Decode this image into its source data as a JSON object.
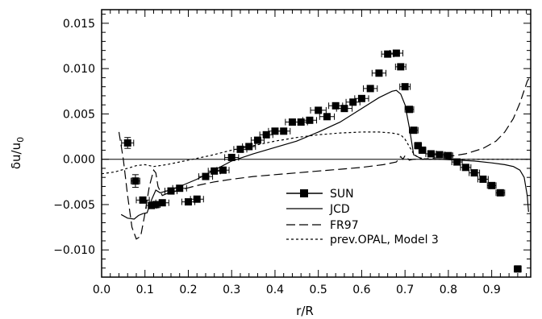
{
  "chart_data": {
    "type": "scatter",
    "xlabel": "r/R",
    "ylabel": "δu/u",
    "ylabel_subscript": "0",
    "xlim": [
      0.0,
      0.99
    ],
    "ylim": [
      -0.013,
      0.0165
    ],
    "x_ticks": [
      0.0,
      0.1,
      0.2,
      0.3,
      0.4,
      0.5,
      0.6,
      0.7,
      0.8,
      0.9
    ],
    "x_tick_labels": [
      "0.0",
      "0.1",
      "0.2",
      "0.3",
      "0.4",
      "0.5",
      "0.6",
      "0.7",
      "0.8",
      "0.9"
    ],
    "y_ticks": [
      -0.01,
      -0.005,
      0.0,
      0.005,
      0.01,
      0.015
    ],
    "y_tick_labels": [
      "−0.010",
      "−0.005",
      "0.000",
      "0.005",
      "0.010",
      "0.015"
    ],
    "reference_line_y": 0.0,
    "grid": false,
    "legend_position": "lower-center",
    "series": [
      {
        "name": "SUN",
        "style": "square-markers-with-x-errorbars",
        "color": "#000000",
        "points": [
          {
            "x": 0.06,
            "y": 0.0018,
            "xerr": 0.014,
            "yerr": 0.0006
          },
          {
            "x": 0.078,
            "y": -0.0024,
            "xerr": 0.01,
            "yerr": 0.0007
          },
          {
            "x": 0.095,
            "y": -0.0045,
            "xerr": 0.015
          },
          {
            "x": 0.115,
            "y": -0.0051,
            "xerr": 0.012
          },
          {
            "x": 0.125,
            "y": -0.005,
            "xerr": 0.01
          },
          {
            "x": 0.14,
            "y": -0.0048,
            "xerr": 0.015
          },
          {
            "x": 0.16,
            "y": -0.0035,
            "xerr": 0.014
          },
          {
            "x": 0.18,
            "y": -0.0032,
            "xerr": 0.016
          },
          {
            "x": 0.2,
            "y": -0.0047,
            "xerr": 0.015
          },
          {
            "x": 0.22,
            "y": -0.0044,
            "xerr": 0.015
          },
          {
            "x": 0.24,
            "y": -0.0019,
            "xerr": 0.016
          },
          {
            "x": 0.26,
            "y": -0.0013,
            "xerr": 0.014
          },
          {
            "x": 0.28,
            "y": -0.0012,
            "xerr": 0.014
          },
          {
            "x": 0.3,
            "y": 0.0002,
            "xerr": 0.016
          },
          {
            "x": 0.32,
            "y": 0.0011,
            "xerr": 0.015
          },
          {
            "x": 0.34,
            "y": 0.0014,
            "xerr": 0.015
          },
          {
            "x": 0.36,
            "y": 0.0021,
            "xerr": 0.015
          },
          {
            "x": 0.38,
            "y": 0.0027,
            "xerr": 0.015
          },
          {
            "x": 0.4,
            "y": 0.0031,
            "xerr": 0.015
          },
          {
            "x": 0.42,
            "y": 0.0031,
            "xerr": 0.015
          },
          {
            "x": 0.44,
            "y": 0.0041,
            "xerr": 0.016
          },
          {
            "x": 0.46,
            "y": 0.0041,
            "xerr": 0.015
          },
          {
            "x": 0.48,
            "y": 0.0043,
            "xerr": 0.016
          },
          {
            "x": 0.5,
            "y": 0.0054,
            "xerr": 0.018
          },
          {
            "x": 0.52,
            "y": 0.0047,
            "xerr": 0.017
          },
          {
            "x": 0.54,
            "y": 0.0059,
            "xerr": 0.016
          },
          {
            "x": 0.56,
            "y": 0.0056,
            "xerr": 0.018
          },
          {
            "x": 0.58,
            "y": 0.0063,
            "xerr": 0.016
          },
          {
            "x": 0.6,
            "y": 0.0067,
            "xerr": 0.016
          },
          {
            "x": 0.62,
            "y": 0.0078,
            "xerr": 0.016
          },
          {
            "x": 0.64,
            "y": 0.0095,
            "xerr": 0.016
          },
          {
            "x": 0.66,
            "y": 0.0116,
            "xerr": 0.014
          },
          {
            "x": 0.68,
            "y": 0.0117,
            "xerr": 0.015
          },
          {
            "x": 0.69,
            "y": 0.0102,
            "xerr": 0.012
          },
          {
            "x": 0.7,
            "y": 0.008,
            "xerr": 0.012
          },
          {
            "x": 0.71,
            "y": 0.0055,
            "xerr": 0.01
          },
          {
            "x": 0.72,
            "y": 0.0032,
            "xerr": 0.01
          },
          {
            "x": 0.73,
            "y": 0.0015,
            "xerr": 0.008
          },
          {
            "x": 0.74,
            "y": 0.001,
            "xerr": 0.008
          },
          {
            "x": 0.76,
            "y": 0.0006,
            "xerr": 0.012
          },
          {
            "x": 0.78,
            "y": 0.0005,
            "xerr": 0.012
          },
          {
            "x": 0.8,
            "y": 0.0004,
            "xerr": 0.01
          },
          {
            "x": 0.82,
            "y": -0.0003,
            "xerr": 0.012
          },
          {
            "x": 0.84,
            "y": -0.0009,
            "xerr": 0.012
          },
          {
            "x": 0.86,
            "y": -0.0015,
            "xerr": 0.012
          },
          {
            "x": 0.88,
            "y": -0.0022,
            "xerr": 0.012
          },
          {
            "x": 0.9,
            "y": -0.0029,
            "xerr": 0.01
          },
          {
            "x": 0.92,
            "y": -0.0037,
            "xerr": 0.01
          },
          {
            "x": 0.96,
            "y": -0.0121,
            "xerr": 0.008
          }
        ]
      },
      {
        "name": "JCD",
        "style": "solid",
        "color": "#000000",
        "x": [
          0.045,
          0.06,
          0.075,
          0.085,
          0.095,
          0.105,
          0.115,
          0.125,
          0.135,
          0.15,
          0.18,
          0.22,
          0.26,
          0.3,
          0.35,
          0.4,
          0.45,
          0.5,
          0.55,
          0.6,
          0.64,
          0.67,
          0.68,
          0.69,
          0.7,
          0.71,
          0.72,
          0.74,
          0.78,
          0.82,
          0.86,
          0.9,
          0.93,
          0.95,
          0.965,
          0.975,
          0.982,
          0.985
        ],
        "y": [
          -0.0061,
          -0.0065,
          -0.0066,
          -0.0062,
          -0.006,
          -0.0059,
          -0.0045,
          -0.0034,
          -0.0037,
          -0.0035,
          -0.003,
          -0.0022,
          -0.0012,
          -0.0002,
          0.0006,
          0.0013,
          0.002,
          0.003,
          0.0041,
          0.0056,
          0.0068,
          0.0075,
          0.0076,
          0.0072,
          0.006,
          0.0035,
          0.0005,
          0.0,
          0.0,
          -0.0001,
          -0.0002,
          -0.0004,
          -0.0006,
          -0.0008,
          -0.0012,
          -0.002,
          -0.004,
          -0.0058
        ]
      },
      {
        "name": "FR97",
        "style": "long-dash",
        "color": "#000000",
        "x": [
          0.04,
          0.05,
          0.06,
          0.07,
          0.08,
          0.09,
          0.1,
          0.11,
          0.12,
          0.125,
          0.13,
          0.14,
          0.15,
          0.18,
          0.22,
          0.26,
          0.3,
          0.35,
          0.4,
          0.45,
          0.5,
          0.55,
          0.6,
          0.65,
          0.68,
          0.69,
          0.695,
          0.7,
          0.71,
          0.72,
          0.74,
          0.76,
          0.8,
          0.84,
          0.88,
          0.91,
          0.93,
          0.95,
          0.965,
          0.975,
          0.982,
          0.987
        ],
        "y": [
          0.003,
          0.0,
          -0.004,
          -0.0075,
          -0.0088,
          -0.0085,
          -0.006,
          -0.003,
          -0.0012,
          -0.0015,
          -0.003,
          -0.004,
          -0.0038,
          -0.0034,
          -0.0029,
          -0.0025,
          -0.0022,
          -0.0019,
          -0.0017,
          -0.0015,
          -0.0013,
          -0.0011,
          -0.0009,
          -0.0006,
          -0.0003,
          0.0003,
          0.0,
          0.0004,
          -0.0001,
          0.0,
          0.0,
          0.0001,
          0.0003,
          0.0006,
          0.0012,
          0.002,
          0.003,
          0.0045,
          0.0062,
          0.0076,
          0.0086,
          0.009
        ]
      },
      {
        "name": "prev.OPAL, Model 3",
        "style": "short-dash",
        "color": "#000000",
        "x": [
          0.0,
          0.03,
          0.06,
          0.08,
          0.1,
          0.12,
          0.15,
          0.2,
          0.25,
          0.3,
          0.35,
          0.4,
          0.45,
          0.5,
          0.55,
          0.6,
          0.64,
          0.67,
          0.69,
          0.7,
          0.71,
          0.72,
          0.73,
          0.75,
          0.8,
          0.85,
          0.9,
          0.95,
          0.985
        ],
        "y": [
          -0.0016,
          -0.0014,
          -0.001,
          -0.0007,
          -0.0006,
          -0.0008,
          -0.0006,
          -0.0001,
          0.0004,
          0.001,
          0.0015,
          0.002,
          0.0024,
          0.0027,
          0.0029,
          0.003,
          0.003,
          0.0029,
          0.0027,
          0.0022,
          0.0014,
          0.0006,
          0.0002,
          0.0,
          0.0,
          0.0,
          0.0,
          0.0,
          0.0
        ]
      }
    ]
  }
}
